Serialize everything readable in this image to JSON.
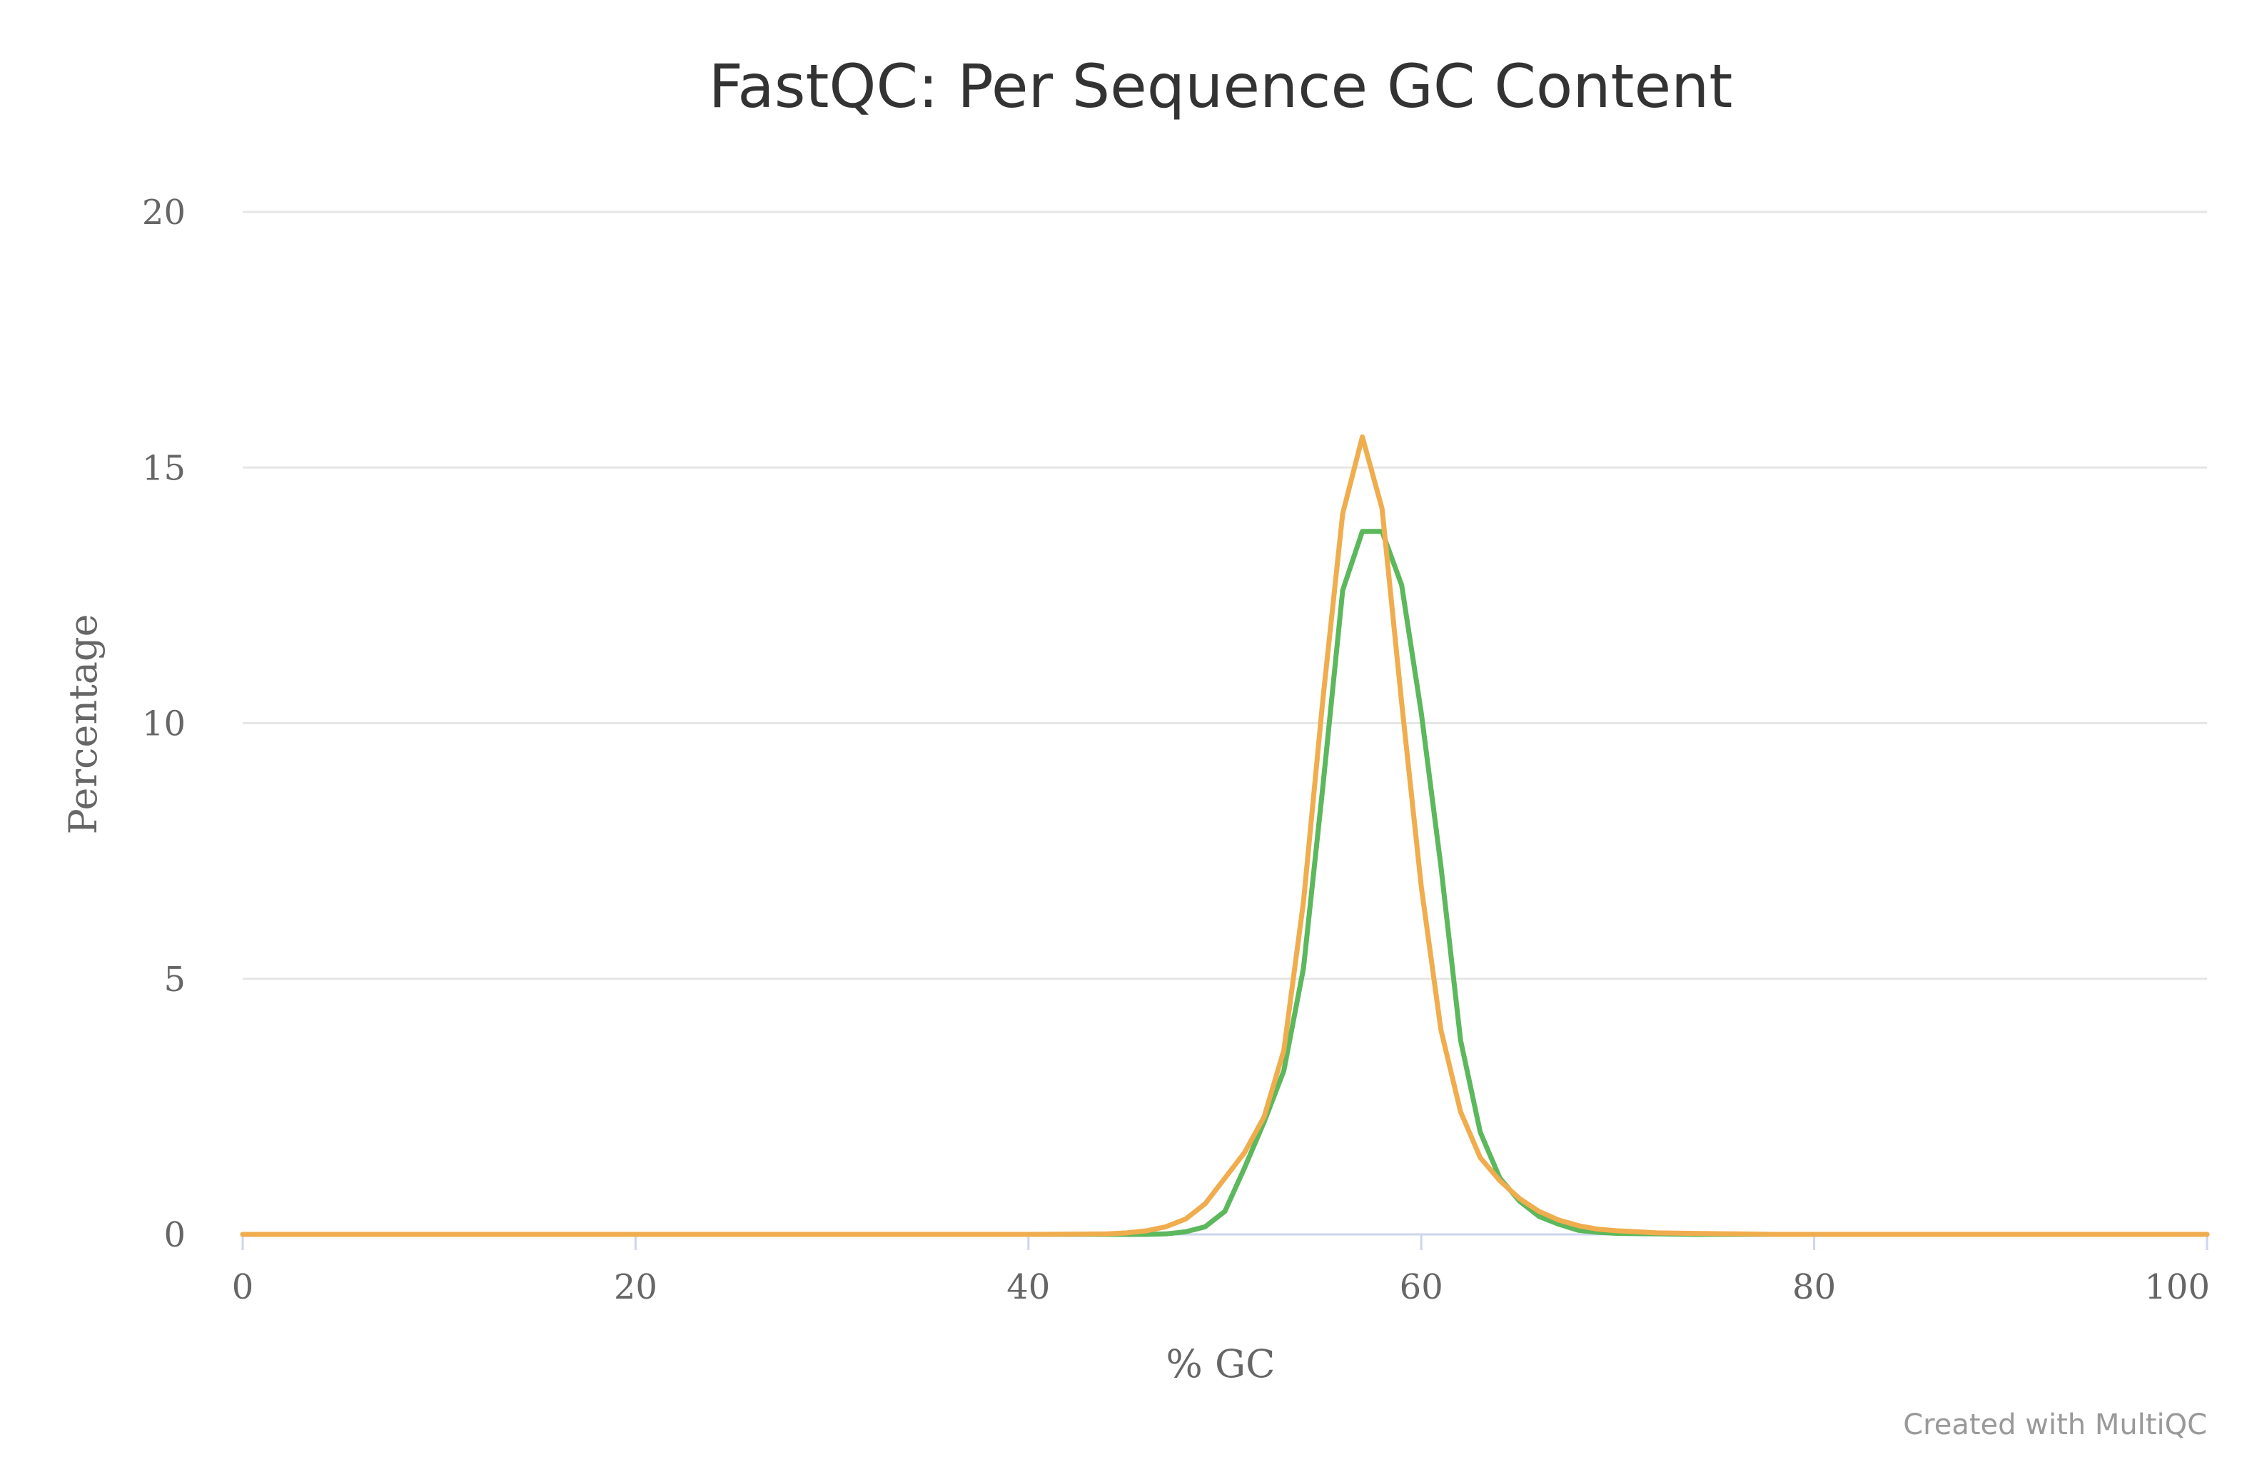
{
  "chart_data": {
    "type": "line",
    "title": "FastQC: Per Sequence GC Content",
    "xlabel": "% GC",
    "ylabel": "Percentage",
    "credit": "Created with MultiQC",
    "xlim": [
      0,
      100
    ],
    "ylim": [
      0,
      20
    ],
    "x_ticks": [
      "0",
      "20",
      "40",
      "60",
      "80",
      "100"
    ],
    "y_ticks": [
      "0",
      "5",
      "10",
      "15",
      "20"
    ],
    "grid": true,
    "legend": "none",
    "series": [
      {
        "color": "#5cb85c",
        "x": [
          0,
          10,
          20,
          30,
          40,
          44,
          46,
          47,
          48,
          49,
          50,
          51,
          52,
          53,
          54,
          55,
          56,
          57,
          58,
          59,
          60,
          61,
          62,
          63,
          64,
          65,
          66,
          67,
          68,
          69,
          70,
          72,
          74,
          76,
          78,
          80,
          90,
          100
        ],
        "values": [
          0,
          0,
          0,
          0,
          0,
          0,
          0,
          0.01,
          0.05,
          0.15,
          0.45,
          1.3,
          2.2,
          3.2,
          5.2,
          8.8,
          12.6,
          13.75,
          13.75,
          12.7,
          10.2,
          7.2,
          3.8,
          2.0,
          1.1,
          0.65,
          0.35,
          0.2,
          0.08,
          0.04,
          0.02,
          0.01,
          0,
          0,
          0,
          0,
          0,
          0
        ]
      },
      {
        "color": "#f0ad4e",
        "x": [
          0,
          10,
          20,
          30,
          40,
          44,
          45,
          46,
          47,
          48,
          49,
          50,
          51,
          52,
          53,
          54,
          55,
          56,
          57,
          58,
          59,
          60,
          61,
          62,
          63,
          64,
          65,
          66,
          67,
          68,
          69,
          70,
          71,
          72,
          74,
          76,
          78,
          80,
          90,
          100
        ],
        "values": [
          0,
          0,
          0,
          0,
          0,
          0.01,
          0.03,
          0.07,
          0.15,
          0.3,
          0.6,
          1.1,
          1.6,
          2.3,
          3.6,
          6.5,
          10.5,
          14.1,
          15.6,
          14.2,
          10.4,
          6.8,
          4.0,
          2.4,
          1.5,
          1.05,
          0.7,
          0.45,
          0.28,
          0.17,
          0.1,
          0.07,
          0.05,
          0.03,
          0.02,
          0.01,
          0,
          0,
          0,
          0
        ]
      }
    ]
  }
}
